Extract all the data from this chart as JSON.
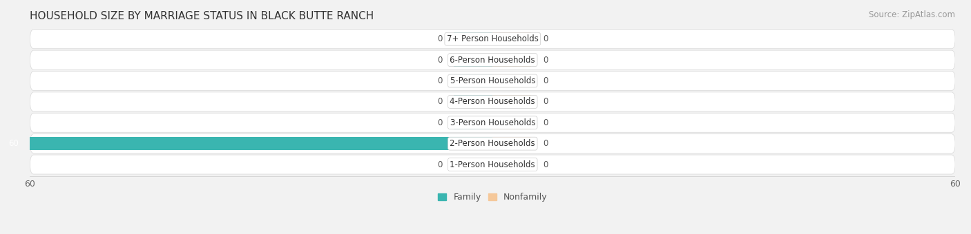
{
  "title": "HOUSEHOLD SIZE BY MARRIAGE STATUS IN BLACK BUTTE RANCH",
  "source": "Source: ZipAtlas.com",
  "categories": [
    "7+ Person Households",
    "6-Person Households",
    "5-Person Households",
    "4-Person Households",
    "3-Person Households",
    "2-Person Households",
    "1-Person Households"
  ],
  "family_values": [
    0,
    0,
    0,
    0,
    0,
    60,
    0
  ],
  "nonfamily_values": [
    0,
    0,
    0,
    0,
    0,
    0,
    0
  ],
  "family_color": "#3ab5b0",
  "nonfamily_color": "#f5c89a",
  "xlim": [
    -60,
    60
  ],
  "xticks": [
    -60,
    60
  ],
  "xticklabels": [
    "60",
    "60"
  ],
  "background_color": "#f2f2f2",
  "row_bg_color": "#e8e8e8",
  "bar_height": 0.62,
  "stub_size": 5,
  "title_fontsize": 11,
  "source_fontsize": 8.5,
  "label_fontsize": 8.5,
  "value_fontsize": 8.5,
  "tick_fontsize": 9,
  "legend_fontsize": 9
}
